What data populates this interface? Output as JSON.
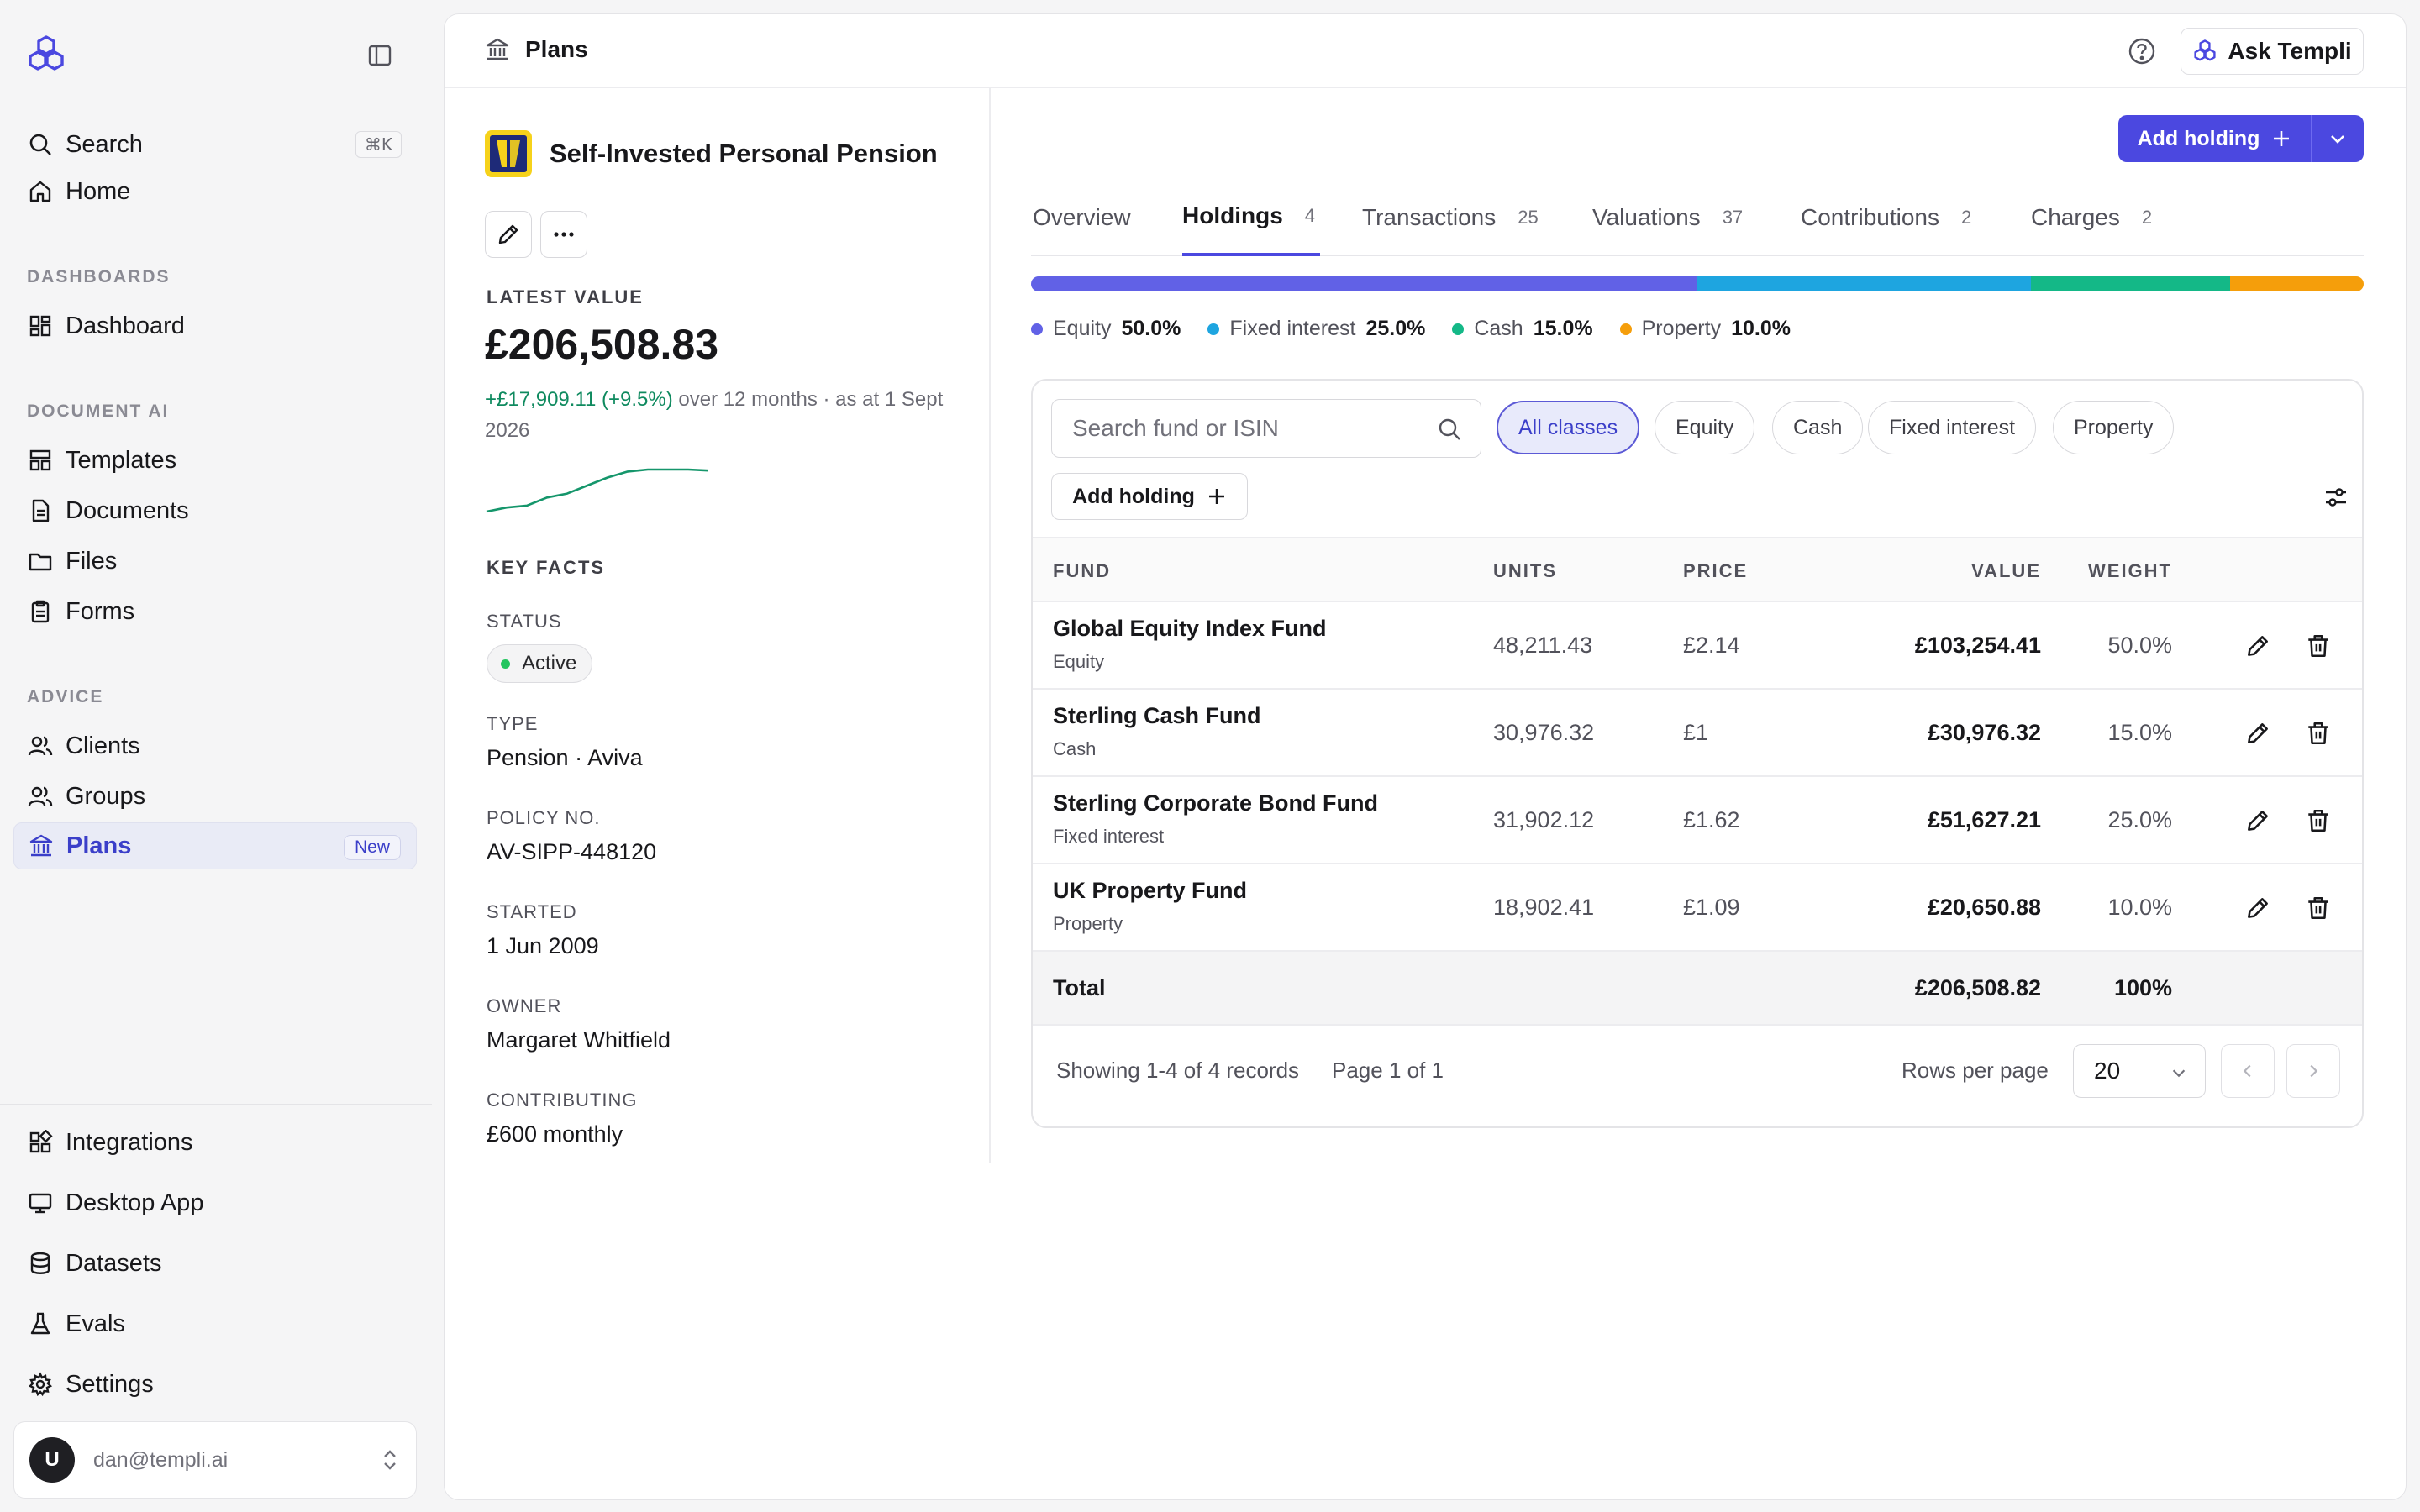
{
  "sidebar": {
    "search_label": "Search",
    "search_shortcut": "⌘K",
    "home_label": "Home",
    "sections": {
      "dashboards": "DASHBOARDS",
      "document_ai": "DOCUMENT AI",
      "advice": "ADVICE"
    },
    "items": {
      "dashboard": "Dashboard",
      "templates": "Templates",
      "documents": "Documents",
      "files": "Files",
      "forms": "Forms",
      "clients": "Clients",
      "groups": "Groups",
      "plans": "Plans",
      "plans_badge": "New",
      "integrations": "Integrations",
      "desktop_app": "Desktop App",
      "datasets": "Datasets",
      "evals": "Evals",
      "settings": "Settings"
    },
    "user": {
      "initial": "U",
      "email": "dan@templi.ai"
    }
  },
  "header": {
    "breadcrumb": "Plans",
    "ask_label": "Ask Templi"
  },
  "plan": {
    "title": "Self-Invested Personal Pension",
    "latest_value_label": "LATEST VALUE",
    "latest_value": "£206,508.83",
    "change": "+£17,909.11 (+9.5%)",
    "change_suffix": " over 12 months · as at 1 Sept 2026",
    "sparkline": [
      40,
      44,
      46,
      54,
      58,
      66,
      74,
      80,
      82,
      82,
      82,
      81
    ],
    "key_facts_label": "KEY FACTS",
    "facts": {
      "status_label": "STATUS",
      "status": "Active",
      "type_label": "TYPE",
      "type": "Pension · Aviva",
      "policy_label": "POLICY NO.",
      "policy": "AV-SIPP-448120",
      "started_label": "STARTED",
      "started": "1 Jun 2009",
      "owner_label": "OWNER",
      "owner": "Margaret Whitfield",
      "contributing_label": "CONTRIBUTING",
      "contributing": "£600 monthly"
    }
  },
  "actions": {
    "add_holding": "Add holding"
  },
  "tabs": [
    {
      "label": "Overview",
      "count": ""
    },
    {
      "label": "Holdings",
      "count": "4"
    },
    {
      "label": "Transactions",
      "count": "25"
    },
    {
      "label": "Valuations",
      "count": "37"
    },
    {
      "label": "Contributions",
      "count": "2"
    },
    {
      "label": "Charges",
      "count": "2"
    }
  ],
  "allocation": [
    {
      "name": "Equity",
      "pct": "50.0%",
      "fraction": 0.5,
      "color": "#6161e6"
    },
    {
      "name": "Fixed interest",
      "pct": "25.0%",
      "fraction": 0.25,
      "color": "#1ea5e0"
    },
    {
      "name": "Cash",
      "pct": "15.0%",
      "fraction": 0.15,
      "color": "#14b887"
    },
    {
      "name": "Property",
      "pct": "10.0%",
      "fraction": 0.1,
      "color": "#f59e0b"
    }
  ],
  "holdings": {
    "search_placeholder": "Search fund or ISIN",
    "filters": [
      "All classes",
      "Equity",
      "Cash",
      "Fixed interest",
      "Property"
    ],
    "add_label": "Add holding",
    "columns": {
      "fund": "FUND",
      "units": "UNITS",
      "price": "PRICE",
      "value": "VALUE",
      "weight": "WEIGHT"
    },
    "rows": [
      {
        "fund": "Global Equity Index Fund",
        "class": "Equity",
        "units": "48,211.43",
        "price": "£2.14",
        "value": "£103,254.41",
        "weight": "50.0%"
      },
      {
        "fund": "Sterling Cash Fund",
        "class": "Cash",
        "units": "30,976.32",
        "price": "£1",
        "value": "£30,976.32",
        "weight": "15.0%"
      },
      {
        "fund": "Sterling Corporate Bond Fund",
        "class": "Fixed interest",
        "units": "31,902.12",
        "price": "£1.62",
        "value": "£51,627.21",
        "weight": "25.0%"
      },
      {
        "fund": "UK Property Fund",
        "class": "Property",
        "units": "18,902.41",
        "price": "£1.09",
        "value": "£20,650.88",
        "weight": "10.0%"
      }
    ],
    "total": {
      "label": "Total",
      "value": "£206,508.82",
      "weight": "100%"
    },
    "footer": {
      "showing": "Showing 1-4 of 4 records",
      "page": "Page 1 of 1",
      "rows_per_page_label": "Rows per page",
      "rows_per_page": "20"
    }
  }
}
